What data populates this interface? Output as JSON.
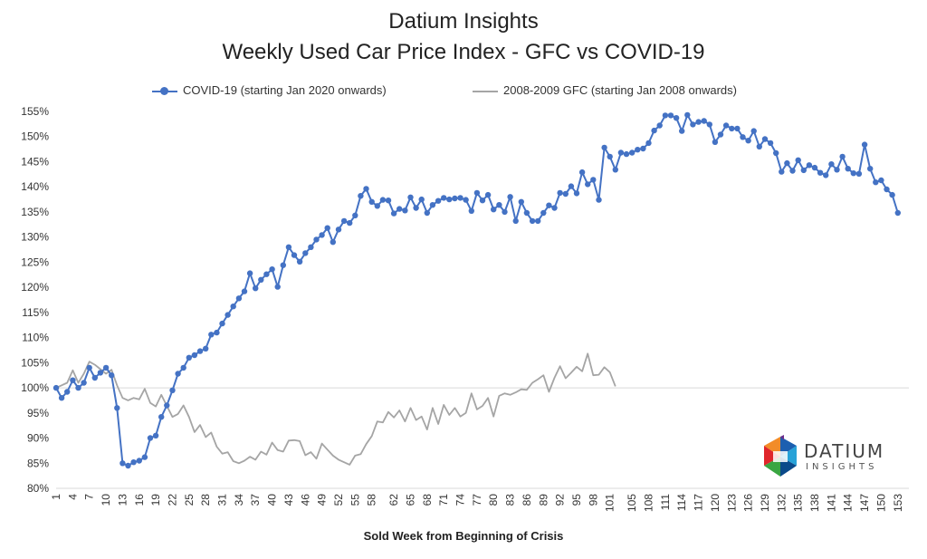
{
  "chart_data": {
    "type": "line",
    "title": "Datium Insights",
    "subtitle": "Weekly Used Car Price Index - GFC vs COVID-19",
    "xlabel": "Sold Week from Beginning of Crisis",
    "ylabel": "",
    "ylim": [
      80,
      155
    ],
    "y_ticks": [
      80,
      85,
      90,
      95,
      100,
      105,
      110,
      115,
      120,
      125,
      130,
      135,
      140,
      145,
      150,
      155
    ],
    "y_tick_labels": [
      "80%",
      "85%",
      "90%",
      "95%",
      "100%",
      "105%",
      "110%",
      "115%",
      "120%",
      "125%",
      "130%",
      "135%",
      "140%",
      "145%",
      "150%",
      "155%"
    ],
    "x_ticks": [
      1,
      4,
      7,
      10,
      13,
      16,
      19,
      22,
      25,
      28,
      31,
      34,
      37,
      40,
      43,
      46,
      49,
      52,
      55,
      58,
      62,
      65,
      68,
      71,
      74,
      77,
      80,
      83,
      86,
      89,
      92,
      95,
      98,
      101,
      105,
      108,
      111,
      114,
      117,
      120,
      123,
      126,
      129,
      132,
      135,
      138,
      141,
      144,
      147,
      150,
      153
    ],
    "reference_line": 100,
    "grid": false,
    "legend_position": "top",
    "series": [
      {
        "name": "COVID-19 (starting Jan 2020 onwards)",
        "color": "#4472C4",
        "marker": "circle",
        "x_start": 1,
        "values": [
          100,
          98,
          99.2,
          101.5,
          100,
          101,
          104,
          102,
          103,
          104,
          102.5,
          96,
          85,
          84.5,
          85.2,
          85.5,
          86.2,
          90,
          90.5,
          94.2,
          96.5,
          99.5,
          102.8,
          104,
          106,
          106.5,
          107.3,
          107.8,
          110.6,
          111,
          112.8,
          114.5,
          116.2,
          117.8,
          119.2,
          122.8,
          119.8,
          121.5,
          122.6,
          123.6,
          120.1,
          124.4,
          128,
          126.4,
          125.1,
          126.8,
          128,
          129.5,
          130.4,
          131.8,
          129,
          131.5,
          133.2,
          132.8,
          134.3,
          138.2,
          139.6,
          137,
          136.2,
          137.4,
          137.3,
          134.7,
          135.6,
          135.3,
          137.9,
          135.8,
          137.5,
          134.8,
          136.4,
          137.2,
          137.8,
          137.5,
          137.7,
          137.8,
          137.4,
          135.2,
          138.8,
          137.3,
          138.4,
          135.5,
          136.4,
          135,
          138,
          133.2,
          137,
          134.8,
          133.2,
          133.2,
          134.8,
          136.3,
          135.8,
          138.8,
          138.6,
          140.1,
          138.7,
          142.9,
          140.5,
          141.4,
          137.4,
          147.8,
          146,
          143.4,
          146.8,
          146.5,
          146.8,
          147.4,
          147.6,
          148.7,
          151.2,
          152.2,
          154.2,
          154.2,
          153.7,
          151.1,
          154.3,
          152.4,
          152.9,
          153.1,
          152.4,
          148.9,
          150.4,
          152.2,
          151.6,
          151.6,
          149.9,
          149.2,
          151.1,
          148,
          149.5,
          148.7,
          146.7,
          143,
          144.7,
          143.2,
          145.3,
          143.3,
          144.3,
          143.8,
          142.8,
          142.3,
          144.5,
          143.4,
          146,
          143.6,
          142.7,
          142.6,
          148.4,
          143.6,
          140.9,
          141.3,
          139.5,
          138.4,
          134.8
        ]
      },
      {
        "name": "2008-2009 GFC (starting Jan 2008 onwards)",
        "color": "#A5A5A5",
        "marker": "none",
        "x_start": 1,
        "values": [
          100,
          100.5,
          101,
          103.5,
          101,
          102.8,
          105.2,
          104.6,
          103.7,
          102.8,
          103.6,
          100.5,
          98,
          97.5,
          98,
          97.7,
          99.8,
          97,
          96.3,
          98.6,
          96.4,
          94.2,
          94.8,
          96.5,
          94.2,
          91.2,
          92.6,
          90.2,
          91.1,
          88.3,
          86.9,
          87.2,
          85.4,
          85,
          85.5,
          86.3,
          85.7,
          87.3,
          86.7,
          89.1,
          87.6,
          87.3,
          89.5,
          89.6,
          89.4,
          86.6,
          87.2,
          85.9,
          88.9,
          87.7,
          86.5,
          85.7,
          85.2,
          84.7,
          86.5,
          86.8,
          88.8,
          90.4,
          93.3,
          93.1,
          95.2,
          94.1,
          95.5,
          93.3,
          96,
          93.6,
          94.3,
          91.7,
          96,
          92.8,
          96.6,
          94.6,
          96,
          94.3,
          95,
          98.9,
          95.7,
          96.4,
          98,
          94.3,
          98.4,
          98.9,
          98.6,
          99.1,
          99.7,
          99.6,
          101,
          101.7,
          102.5,
          99.2,
          102,
          104.3,
          101.9,
          103,
          104.2,
          103.3,
          106.8,
          102.5,
          102.6,
          104.1,
          103.1,
          100.3
        ]
      }
    ]
  },
  "logo": {
    "name": "DATIUM",
    "tagline": "INSIGHTS"
  }
}
